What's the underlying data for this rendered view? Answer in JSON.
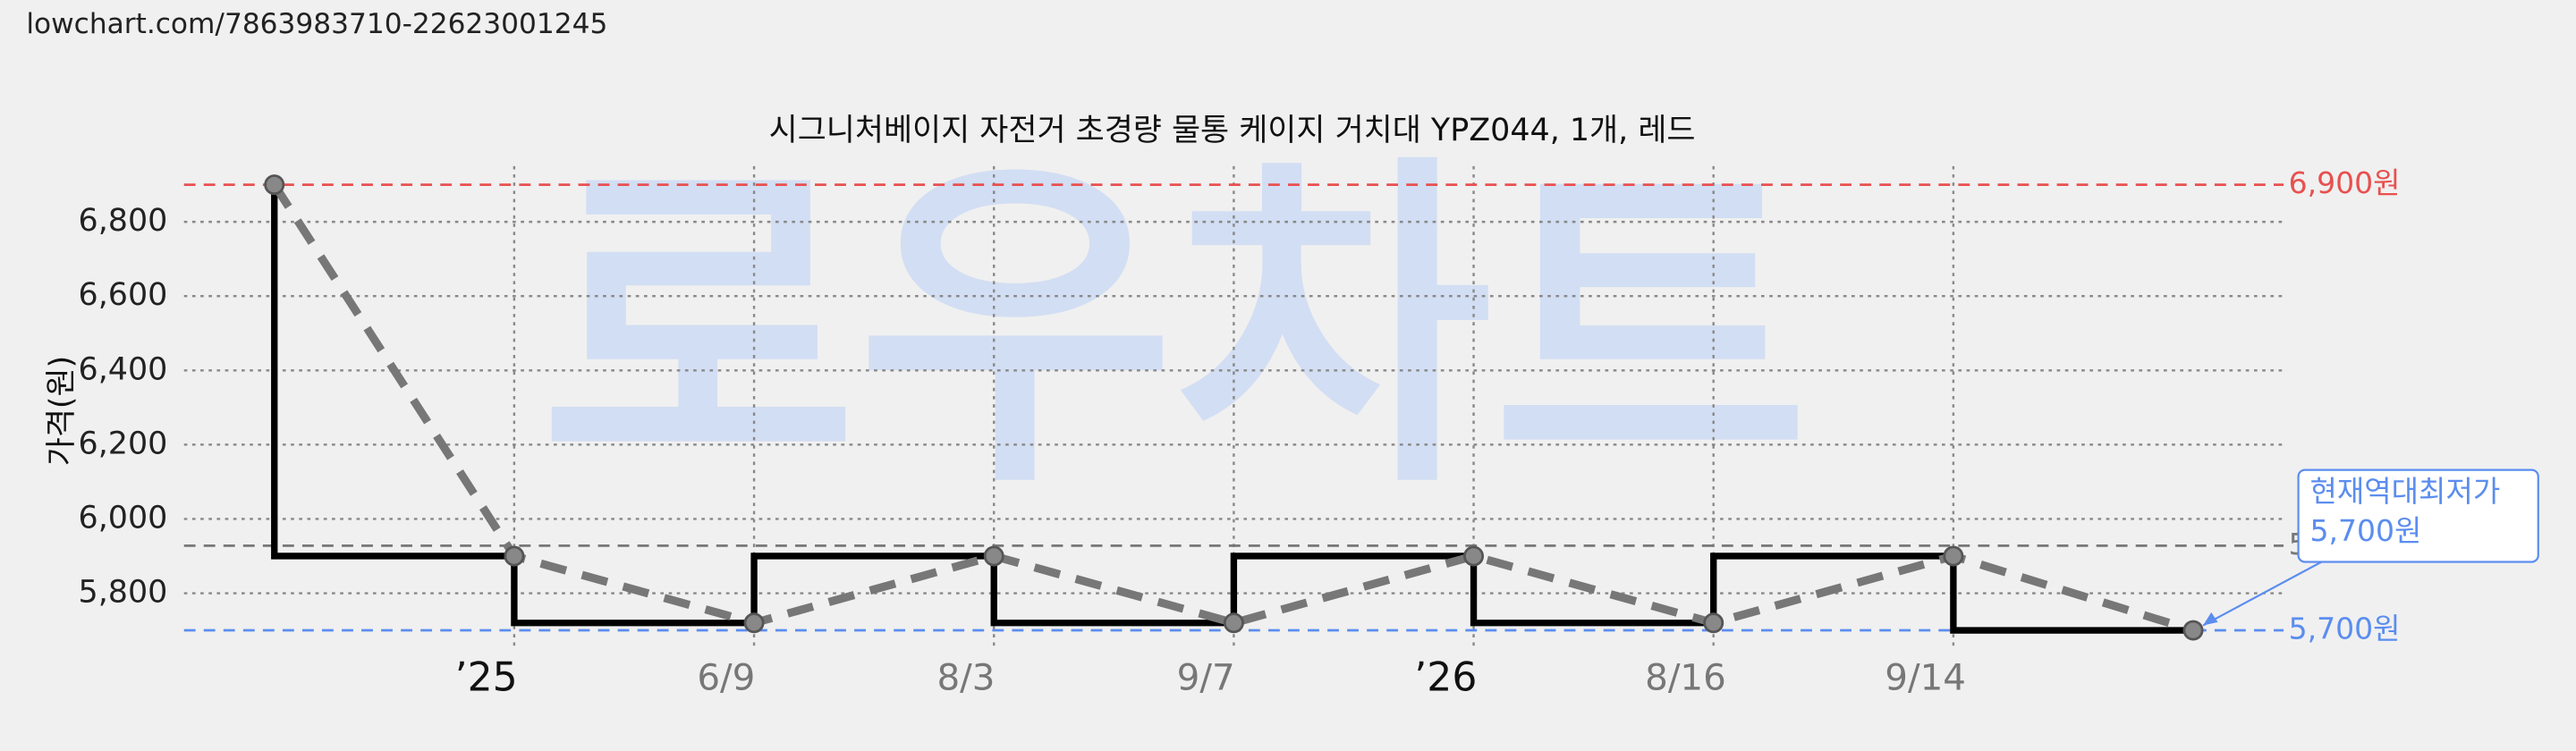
{
  "url": "lowchart.com/7863983710-22623001245",
  "chart_data": {
    "type": "line",
    "title": "시그니처베이지 자전거 초경량 물통 케이지 거치대 YPZ044, 1개, 레드",
    "watermark": "로우차트",
    "y_label": "가격(원)",
    "categories": [
      null,
      "’25",
      "6/9",
      "8/3",
      "9/7",
      "’26",
      "8/16",
      "9/14",
      null
    ],
    "values": [
      6900,
      5900,
      5720,
      5900,
      5720,
      5900,
      5720,
      5900,
      5700
    ],
    "step_color": "#000000",
    "trend_color": "#777777",
    "ylim": [
      5650,
      6950
    ],
    "yticks": [
      {
        "value": 5800,
        "label": "5,800"
      },
      {
        "value": 6000,
        "label": "6,000"
      },
      {
        "value": 6200,
        "label": "6,200"
      },
      {
        "value": 6400,
        "label": "6,400"
      },
      {
        "value": 6600,
        "label": "6,600"
      },
      {
        "value": 6800,
        "label": "6,800"
      }
    ],
    "grid": true,
    "reference_lines": [
      {
        "value": 6900,
        "label": "6,900원",
        "color": "#e8504f"
      },
      {
        "value": 5928,
        "label": "5",
        "color": "#777777"
      },
      {
        "value": 5700,
        "label": "5,700원",
        "color": "#5b8def"
      }
    ],
    "annotation": {
      "lines": [
        "현재역대최저가",
        "5,700원"
      ],
      "point_index": 8,
      "color": "#5b8def"
    }
  }
}
